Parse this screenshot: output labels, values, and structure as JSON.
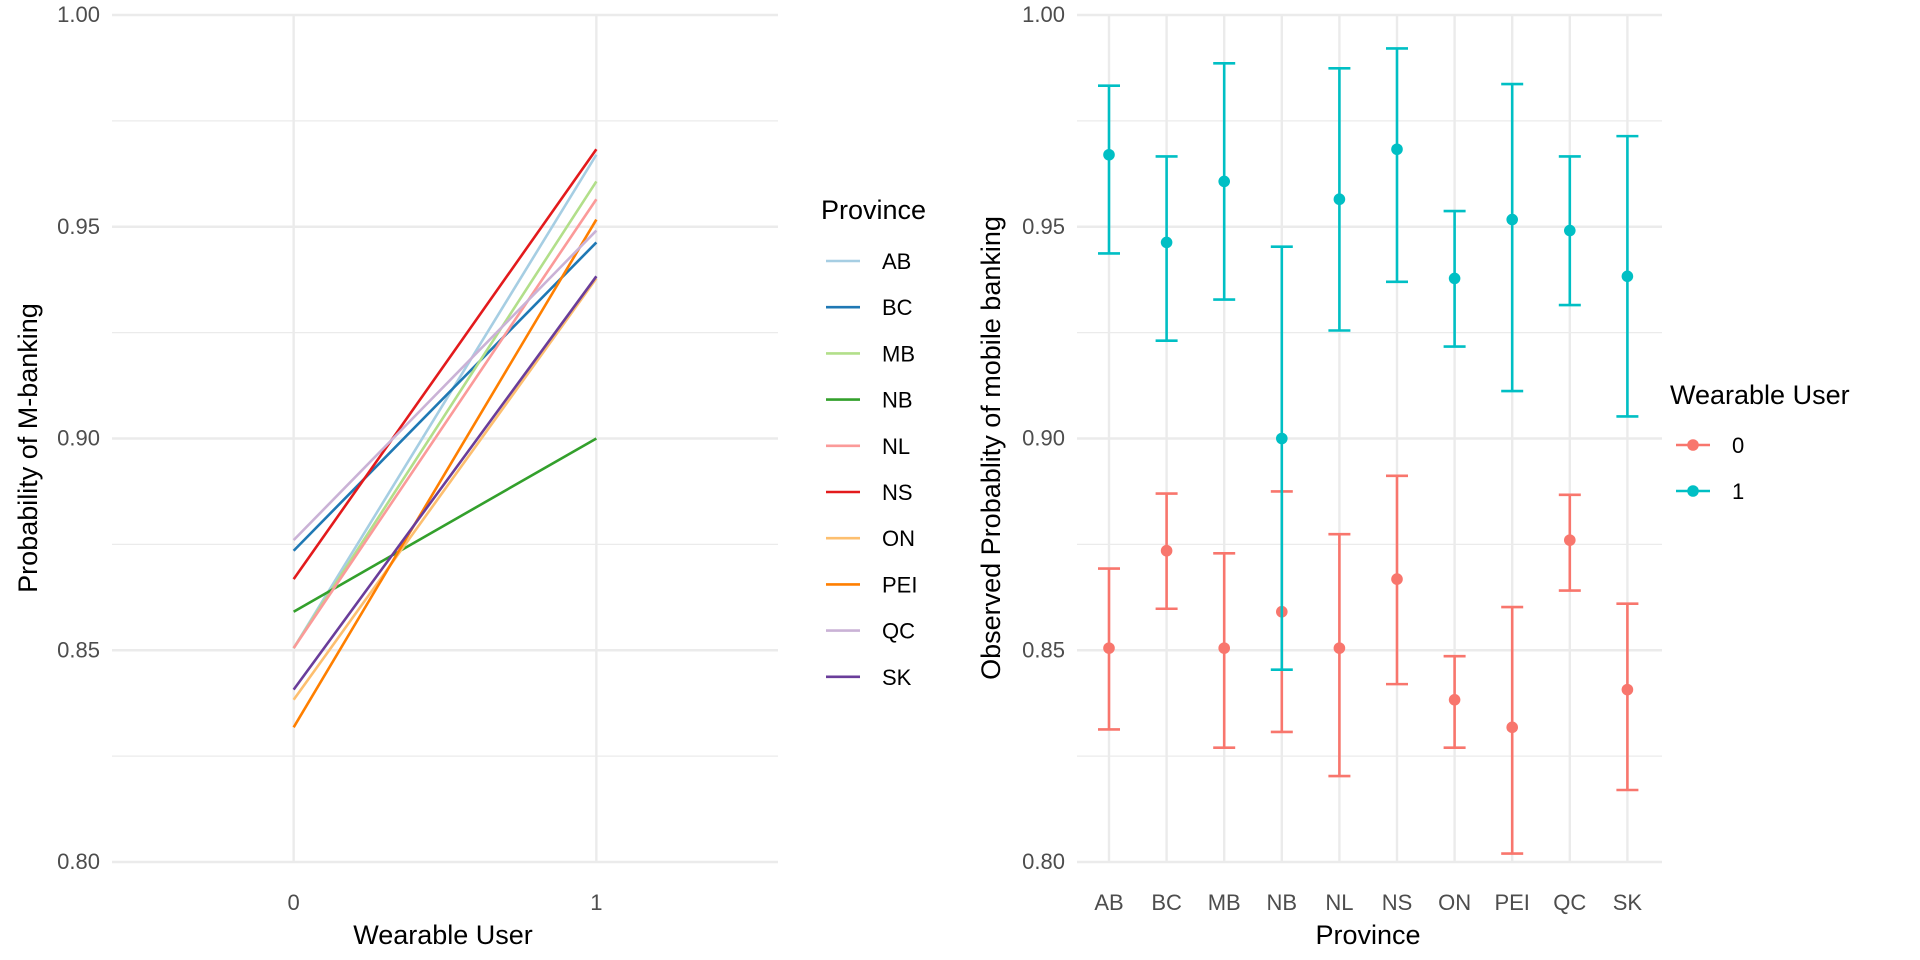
{
  "colors": {
    "wearable_0": "#F8766D",
    "wearable_1": "#00BFC4",
    "grid": "#ebebeb",
    "tick_text": "#4d4d4d"
  },
  "chart_data": [
    {
      "type": "line",
      "title": "",
      "xlabel": "Wearable User",
      "ylabel": "Probability of M-banking",
      "x": [
        0,
        1
      ],
      "x_tick_labels": [
        "0",
        "1"
      ],
      "xlim": [
        -0.6,
        1.6
      ],
      "ylim": [
        0.8,
        1.0
      ],
      "y_ticks": [
        0.8,
        0.85,
        0.9,
        0.95,
        1.0
      ],
      "y_tick_labels": [
        "0.80",
        "0.85",
        "0.90",
        "0.95",
        "1.00"
      ],
      "grid": true,
      "legend": {
        "title": "Province",
        "placement": "right"
      },
      "series": [
        {
          "name": "AB",
          "color": "#A6CEE3",
          "values": [
            0.8505,
            0.967
          ]
        },
        {
          "name": "BC",
          "color": "#1F78B4",
          "values": [
            0.8735,
            0.9463
          ]
        },
        {
          "name": "MB",
          "color": "#B2DF8A",
          "values": [
            0.8505,
            0.9607
          ]
        },
        {
          "name": "NB",
          "color": "#33A02C",
          "values": [
            0.8591,
            0.9
          ]
        },
        {
          "name": "NL",
          "color": "#FB9A99",
          "values": [
            0.8505,
            0.9565
          ]
        },
        {
          "name": "NS",
          "color": "#E31A1C",
          "values": [
            0.8668,
            0.9683
          ]
        },
        {
          "name": "ON",
          "color": "#FDBF6F",
          "values": [
            0.8383,
            0.9378
          ]
        },
        {
          "name": "PEI",
          "color": "#FF7F00",
          "values": [
            0.8318,
            0.9517
          ]
        },
        {
          "name": "QC",
          "color": "#CAB2D6",
          "values": [
            0.876,
            0.9491
          ]
        },
        {
          "name": "SK",
          "color": "#6A3D9A",
          "values": [
            0.8407,
            0.9383
          ]
        }
      ]
    },
    {
      "type": "scatter",
      "subtype": "errorbar",
      "title": "",
      "xlabel": "Province",
      "ylabel": "Observed Probablity of mobile banking",
      "categories": [
        "AB",
        "BC",
        "MB",
        "NB",
        "NL",
        "NS",
        "ON",
        "PEI",
        "QC",
        "SK"
      ],
      "ylim": [
        0.8,
        1.0
      ],
      "y_ticks": [
        0.8,
        0.85,
        0.9,
        0.95,
        1.0
      ],
      "y_tick_labels": [
        "0.80",
        "0.85",
        "0.90",
        "0.95",
        "1.00"
      ],
      "grid": true,
      "legend": {
        "title": "Wearable User",
        "placement": "right"
      },
      "series": [
        {
          "name": "0",
          "color": "#F8766D",
          "values": [
            0.8505,
            0.8735,
            0.8505,
            0.8591,
            0.8505,
            0.8668,
            0.8383,
            0.8318,
            0.876,
            0.8407
          ],
          "lower": [
            0.8313,
            0.8598,
            0.827,
            0.8307,
            0.8203,
            0.842,
            0.827,
            0.802,
            0.8641,
            0.817
          ],
          "upper": [
            0.8693,
            0.887,
            0.8729,
            0.8875,
            0.8774,
            0.8912,
            0.8486,
            0.8602,
            0.8867,
            0.861
          ]
        },
        {
          "name": "1",
          "color": "#00BFC4",
          "values": [
            0.967,
            0.9463,
            0.9607,
            0.9,
            0.9565,
            0.9683,
            0.9378,
            0.9517,
            0.9491,
            0.9383
          ],
          "lower": [
            0.9437,
            0.9231,
            0.9328,
            0.8454,
            0.9255,
            0.937,
            0.9217,
            0.9112,
            0.9315,
            0.9052
          ],
          "upper": [
            0.9833,
            0.9666,
            0.9886,
            0.9453,
            0.9874,
            0.9921,
            0.9537,
            0.9837,
            0.9666,
            0.9714
          ]
        }
      ]
    }
  ]
}
